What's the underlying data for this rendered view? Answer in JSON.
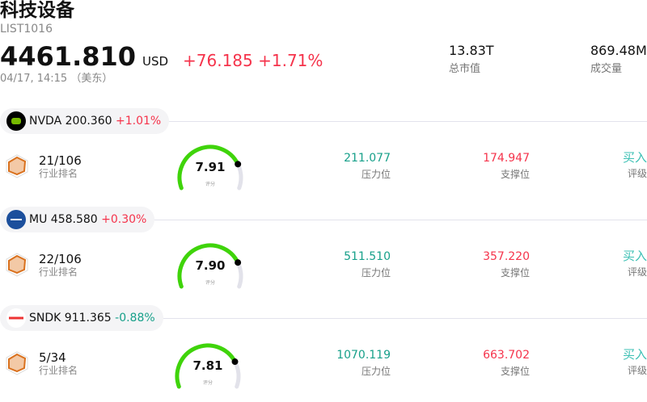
{
  "header": {
    "title": "科技设备",
    "code": "LIST1016",
    "price": "4461.810",
    "currency": "USD",
    "change": "+76.185",
    "change_pct": "+1.71%",
    "time": "04/17, 14:15 （美东）",
    "stats": [
      {
        "value": "13.83T",
        "label": "总市值"
      },
      {
        "value": "869.48M",
        "label": "成交量"
      }
    ]
  },
  "colors": {
    "up": "#f5334b",
    "down": "#17a08a",
    "gauge": "#3fd40a",
    "buy": "#3cc0b4"
  },
  "stocks": [
    {
      "ticker": "NVDA",
      "price": "200.360",
      "change": "+1.01%",
      "dir": "up",
      "logo": "nvidia-logo",
      "rank": "21/106",
      "rank_label": "行业排名",
      "score": "7.91",
      "score_label": "评分",
      "resistance": "211.077",
      "resistance_label": "压力位",
      "support": "174.947",
      "support_label": "支撑位",
      "rating": "买入",
      "rating_label": "评级"
    },
    {
      "ticker": "MU",
      "price": "458.580",
      "change": "+0.30%",
      "dir": "up",
      "logo": "micron-logo",
      "rank": "22/106",
      "rank_label": "行业排名",
      "score": "7.90",
      "score_label": "评分",
      "resistance": "511.510",
      "resistance_label": "压力位",
      "support": "357.220",
      "support_label": "支撑位",
      "rating": "买入",
      "rating_label": "评级"
    },
    {
      "ticker": "SNDK",
      "price": "911.365",
      "change": "-0.88%",
      "dir": "down",
      "logo": "sandisk-logo",
      "rank": "5/34",
      "rank_label": "行业排名",
      "score": "7.81",
      "score_label": "评分",
      "resistance": "1070.119",
      "resistance_label": "压力位",
      "support": "663.702",
      "support_label": "支撑位",
      "rating": "买入",
      "rating_label": "评级"
    }
  ]
}
